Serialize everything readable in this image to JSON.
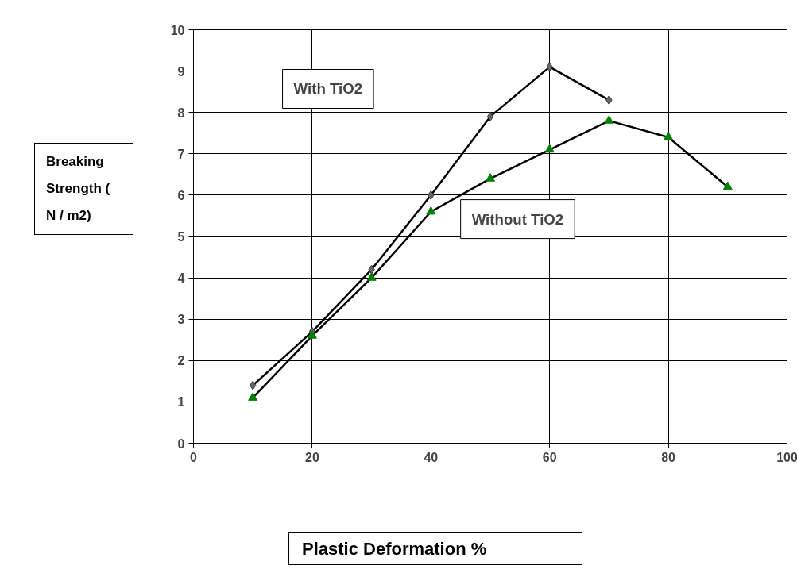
{
  "chart_data": {
    "type": "line",
    "xlabel": "Plastic Deformation %",
    "ylabel": "Breaking Strength ( N / m2)",
    "xlim": [
      0,
      100
    ],
    "xticks": [
      0,
      20,
      40,
      60,
      80,
      100
    ],
    "ylim": [
      0,
      10
    ],
    "yticks": [
      0,
      1,
      2,
      3,
      4,
      5,
      6,
      7,
      8,
      9,
      10
    ],
    "grid": true,
    "legend": false,
    "series": [
      {
        "name": "With TiO2",
        "color": "#666666",
        "marker": "diamond",
        "x": [
          10,
          20,
          30,
          40,
          50,
          60,
          70
        ],
        "values": [
          1.4,
          2.7,
          4.2,
          6.0,
          7.9,
          9.1,
          8.3
        ]
      },
      {
        "name": "Without TiO2",
        "color": "#008000",
        "marker": "triangle",
        "x": [
          10,
          20,
          30,
          40,
          50,
          60,
          70,
          80,
          90
        ],
        "values": [
          1.1,
          2.6,
          4.0,
          5.6,
          6.4,
          7.1,
          7.8,
          7.4,
          6.2
        ]
      }
    ]
  }
}
